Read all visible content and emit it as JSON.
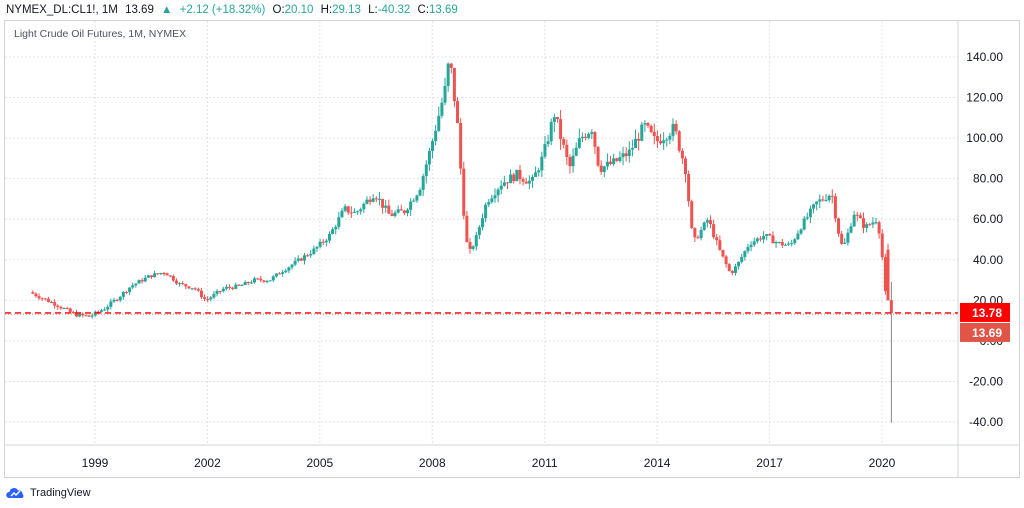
{
  "header": {
    "symbol": "NYMEX_DL:CL1!, 1M",
    "last": "13.69",
    "change": "+2.12 (+18.32%)",
    "o_label": "O:",
    "o_val": "20.10",
    "h_label": "H:",
    "h_val": "29.13",
    "l_label": "L:",
    "l_val": "-40.32",
    "c_label": "C:",
    "c_val": "13.69"
  },
  "subtitle": "Light Crude Oil Futures, 1M, NYMEX",
  "footer": {
    "brand": "TradingView"
  },
  "colors": {
    "up": "#26a69a",
    "down": "#ef5350",
    "price_line": "#ff0000",
    "last_tag": "#e05545"
  },
  "chart_data": {
    "type": "candlestick",
    "title": "Light Crude Oil Futures, 1M, NYMEX",
    "x_ticks": [
      "1999",
      "2002",
      "2005",
      "2008",
      "2011",
      "2014",
      "2017",
      "2020"
    ],
    "y_ticks": [
      "140.00",
      "120.00",
      "100.00",
      "80.00",
      "60.00",
      "40.00",
      "20.00",
      "0.00",
      "-20.00",
      "-40.00"
    ],
    "ylim": [
      -50,
      150
    ],
    "xlim": [
      1997.3,
      2022.0
    ],
    "grid": true,
    "price_lines": [
      {
        "value": 13.78,
        "label": "13.78",
        "color": "#ff0000"
      },
      {
        "value": 13.69,
        "label": "13.69",
        "color": "#e05545"
      }
    ],
    "series": [
      {
        "values": [
          [
            1997.3,
            24
          ],
          [
            1998.0,
            18
          ],
          [
            1998.5,
            13
          ],
          [
            1998.9,
            12
          ],
          [
            1999.3,
            16
          ],
          [
            1999.7,
            22
          ],
          [
            2000.0,
            27
          ],
          [
            2000.5,
            32
          ],
          [
            2000.9,
            34
          ],
          [
            2001.3,
            28
          ],
          [
            2001.7,
            26
          ],
          [
            2002.0,
            20
          ],
          [
            2002.5,
            26
          ],
          [
            2002.9,
            27
          ],
          [
            2003.3,
            30
          ],
          [
            2003.7,
            30
          ],
          [
            2004.0,
            34
          ],
          [
            2004.5,
            40
          ],
          [
            2004.9,
            45
          ],
          [
            2005.3,
            52
          ],
          [
            2005.7,
            65
          ],
          [
            2006.0,
            63
          ],
          [
            2006.5,
            73
          ],
          [
            2006.9,
            62
          ],
          [
            2007.3,
            64
          ],
          [
            2007.7,
            75
          ],
          [
            2008.0,
            95
          ],
          [
            2008.4,
            125
          ],
          [
            2008.5,
            140
          ],
          [
            2008.7,
            110
          ],
          [
            2008.9,
            60
          ],
          [
            2009.0,
            42
          ],
          [
            2009.2,
            50
          ],
          [
            2009.5,
            69
          ],
          [
            2009.9,
            78
          ],
          [
            2010.3,
            82
          ],
          [
            2010.7,
            78
          ],
          [
            2011.0,
            91
          ],
          [
            2011.3,
            112
          ],
          [
            2011.7,
            85
          ],
          [
            2012.0,
            100
          ],
          [
            2012.3,
            105
          ],
          [
            2012.5,
            85
          ],
          [
            2012.9,
            88
          ],
          [
            2013.3,
            93
          ],
          [
            2013.7,
            106
          ],
          [
            2014.0,
            98
          ],
          [
            2014.5,
            105
          ],
          [
            2014.8,
            85
          ],
          [
            2015.0,
            48
          ],
          [
            2015.4,
            60
          ],
          [
            2015.7,
            45
          ],
          [
            2016.0,
            33
          ],
          [
            2016.2,
            38
          ],
          [
            2016.5,
            48
          ],
          [
            2016.9,
            52
          ],
          [
            2017.3,
            48
          ],
          [
            2017.6,
            47
          ],
          [
            2017.9,
            57
          ],
          [
            2018.3,
            68
          ],
          [
            2018.7,
            73
          ],
          [
            2018.9,
            52
          ],
          [
            2019.0,
            45
          ],
          [
            2019.3,
            63
          ],
          [
            2019.6,
            56
          ],
          [
            2019.9,
            60
          ],
          [
            2020.0,
            52
          ],
          [
            2020.15,
            20
          ],
          [
            2020.25,
            13.69
          ]
        ]
      }
    ]
  }
}
